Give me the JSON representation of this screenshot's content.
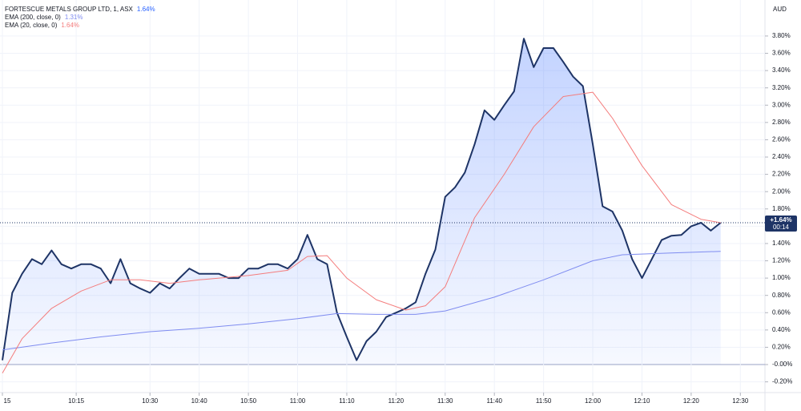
{
  "chart_data": {
    "type": "line",
    "currency": "AUD",
    "last_label": "+1.64%",
    "countdown": "00:14",
    "x": [
      "10:00",
      "10:02",
      "10:04",
      "10:06",
      "10:08",
      "10:10",
      "10:12",
      "10:14",
      "10:16",
      "10:18",
      "10:20",
      "10:22",
      "10:24",
      "10:26",
      "10:28",
      "10:30",
      "10:32",
      "10:34",
      "10:36",
      "10:38",
      "10:40",
      "10:42",
      "10:44",
      "10:46",
      "10:48",
      "10:50",
      "10:52",
      "10:54",
      "10:56",
      "10:58",
      "11:00",
      "11:02",
      "11:04",
      "11:06",
      "11:08",
      "11:10",
      "11:12",
      "11:14",
      "11:16",
      "11:18",
      "11:20",
      "11:22",
      "11:24",
      "11:26",
      "11:28",
      "11:30",
      "11:32",
      "11:34",
      "11:36",
      "11:38",
      "11:40",
      "11:42",
      "11:44",
      "11:46",
      "11:48",
      "11:50",
      "11:52",
      "11:54",
      "11:56",
      "11:58",
      "12:00",
      "12:02",
      "12:04",
      "12:06",
      "12:08",
      "12:10",
      "12:12",
      "12:14",
      "12:16",
      "12:18",
      "12:20",
      "12:22",
      "12:24",
      "12:26"
    ],
    "series": [
      {
        "name": "FORTESCUE METALS GROUP LTD, 1, ASX",
        "color": "#1e3466",
        "area": true,
        "value_label": "1.64%",
        "values": [
          0.05,
          0.83,
          1.05,
          1.22,
          1.16,
          1.32,
          1.16,
          1.11,
          1.16,
          1.16,
          1.11,
          0.94,
          1.22,
          0.94,
          0.88,
          0.83,
          0.94,
          0.88,
          1.0,
          1.11,
          1.05,
          1.05,
          1.05,
          1.0,
          1.0,
          1.11,
          1.11,
          1.16,
          1.16,
          1.11,
          1.22,
          1.5,
          1.22,
          1.16,
          0.6,
          0.32,
          0.05,
          0.27,
          0.38,
          0.55,
          0.6,
          0.65,
          0.72,
          1.05,
          1.33,
          1.94,
          2.05,
          2.22,
          2.55,
          2.94,
          2.83,
          3.0,
          3.16,
          3.77,
          3.44,
          3.66,
          3.66,
          3.5,
          3.33,
          3.22,
          2.55,
          1.83,
          1.77,
          1.55,
          1.22,
          1.0,
          1.22,
          1.44,
          1.49,
          1.5,
          1.6,
          1.64,
          1.55,
          1.64
        ]
      },
      {
        "name": "EMA (200, close, 0)",
        "color": "#7f8cf0",
        "value_label": "1.31%",
        "x": [
          "10:00",
          "10:10",
          "10:20",
          "10:30",
          "10:40",
          "10:50",
          "11:00",
          "11:08",
          "11:16",
          "11:24",
          "11:30",
          "11:40",
          "11:50",
          "12:00",
          "12:06",
          "12:16",
          "12:26"
        ],
        "values": [
          0.17,
          0.25,
          0.32,
          0.38,
          0.42,
          0.47,
          0.53,
          0.59,
          0.58,
          0.58,
          0.62,
          0.78,
          0.98,
          1.2,
          1.27,
          1.29,
          1.31
        ]
      },
      {
        "name": "EMA (20, close, 0)",
        "color": "#f47c7c",
        "value_label": "1.64%",
        "x": [
          "10:00",
          "10:04",
          "10:10",
          "10:16",
          "10:22",
          "10:28",
          "10:34",
          "10:40",
          "10:50",
          "10:58",
          "11:02",
          "11:06",
          "11:10",
          "11:16",
          "11:22",
          "11:26",
          "11:30",
          "11:36",
          "11:42",
          "11:48",
          "11:54",
          "12:00",
          "12:04",
          "12:10",
          "12:16",
          "12:22",
          "12:26"
        ],
        "values": [
          -0.1,
          0.3,
          0.65,
          0.85,
          0.98,
          0.98,
          0.94,
          0.98,
          1.03,
          1.09,
          1.25,
          1.26,
          1.0,
          0.75,
          0.63,
          0.68,
          0.9,
          1.7,
          2.2,
          2.75,
          3.1,
          3.15,
          2.85,
          2.3,
          1.85,
          1.68,
          1.64
        ]
      }
    ],
    "xlim": [
      "10:00",
      "12:35"
    ],
    "xticks": [
      {
        "value": "10:00",
        "label": "15"
      },
      "10:15",
      "10:30",
      "10:40",
      "10:50",
      "11:00",
      "11:10",
      "11:20",
      "11:30",
      "11:40",
      "11:50",
      "12:00",
      "12:10",
      "12:20",
      "12:30"
    ],
    "ylim": [
      -0.324,
      4.17
    ],
    "yticks": [
      {
        "value": -0.2,
        "label": "-0.20%"
      },
      {
        "value": 0,
        "label": "-0.00%"
      },
      {
        "value": 0.2,
        "label": "0.20%"
      },
      {
        "value": 0.4,
        "label": "0.40%"
      },
      {
        "value": 0.6,
        "label": "0.60%"
      },
      {
        "value": 0.8,
        "label": "0.80%"
      },
      {
        "value": 1,
        "label": "1.00%"
      },
      {
        "value": 1.2,
        "label": "1.20%"
      },
      {
        "value": 1.4,
        "label": "1.40%"
      },
      {
        "value": 1.6,
        "label": "1.60%"
      },
      {
        "value": 1.8,
        "label": "1.80%"
      },
      {
        "value": 2,
        "label": "2.00%"
      },
      {
        "value": 2.2,
        "label": "2.20%"
      },
      {
        "value": 2.4,
        "label": "2.40%"
      },
      {
        "value": 2.6,
        "label": "2.60%"
      },
      {
        "value": 2.8,
        "label": "2.80%"
      },
      {
        "value": 3,
        "label": "3.00%"
      },
      {
        "value": 3.2,
        "label": "3.20%"
      },
      {
        "value": 3.4,
        "label": "3.40%"
      },
      {
        "value": 3.6,
        "label": "3.60%"
      },
      {
        "value": 3.8,
        "label": "3.80%"
      }
    ],
    "grid": true
  }
}
